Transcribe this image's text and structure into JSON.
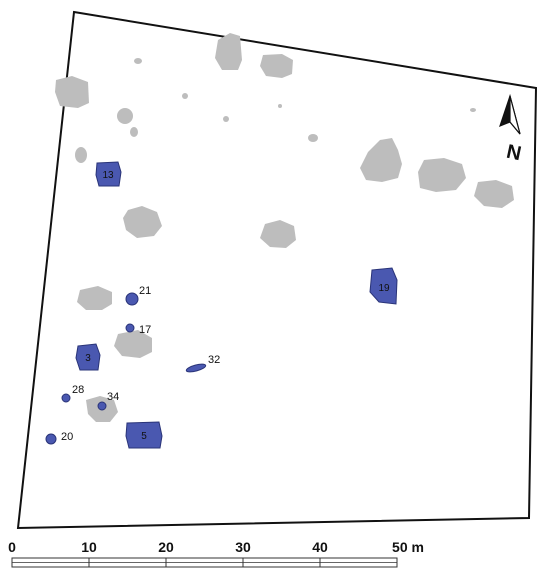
{
  "colors": {
    "feature_fill": "#4a58b0",
    "feature_stroke": "#2a3478",
    "pit_fill": "#bdbdbd",
    "boundary": "#111111",
    "background": "#ffffff"
  },
  "north_arrow": {
    "label": "N",
    "icon": "north-arrow-icon"
  },
  "features": {
    "f13": "13",
    "f19": "19",
    "f21": "21",
    "f17": "17",
    "f3": "3",
    "f32": "32",
    "f28": "28",
    "f34": "34",
    "f20": "20",
    "f5": "5"
  },
  "scale_bar": {
    "ticks": [
      "0",
      "10",
      "20",
      "30",
      "40",
      "50 m"
    ]
  }
}
